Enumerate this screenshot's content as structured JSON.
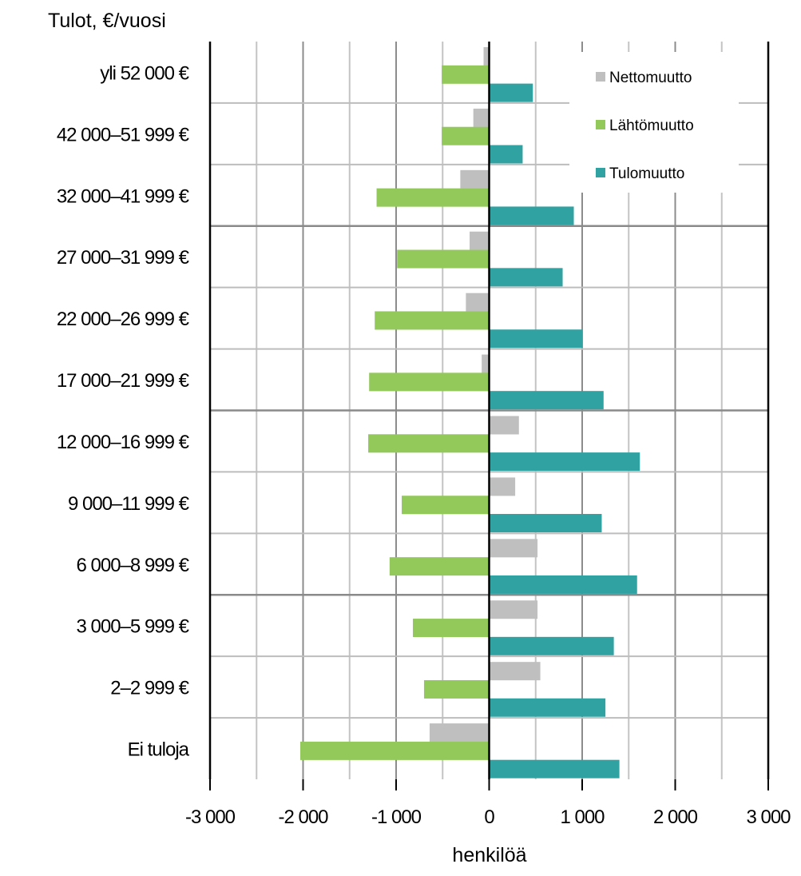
{
  "chart_data": {
    "type": "bar",
    "orientation": "horizontal",
    "y_axis_title": "Tulot, €/vuosi",
    "xlabel": "henkilöä",
    "categories": [
      "yli 52 000 €",
      "42 000–51 999 €",
      "32 000–41 999 €",
      "27 000–31 999 €",
      "22 000–26 999 €",
      "17 000–21 999 €",
      "12 000–16 999 €",
      "9 000–11 999 €",
      "6 000–8 999 €",
      "3 000–5 999 €",
      "2–2 999 €",
      "Ei tuloja"
    ],
    "series": [
      {
        "name": "Nettomuutto",
        "color": "#bfbfbf",
        "values": [
          -60,
          -170,
          -310,
          -210,
          -250,
          -80,
          320,
          280,
          520,
          520,
          550,
          -640
        ]
      },
      {
        "name": "Lähtömuutto",
        "color": "#92c95a",
        "values": [
          -510,
          -510,
          -1210,
          -990,
          -1230,
          -1290,
          -1300,
          -940,
          -1070,
          -820,
          -700,
          -2030
        ]
      },
      {
        "name": "Tulomuutto",
        "color": "#31a2a2",
        "values": [
          470,
          360,
          910,
          790,
          1000,
          1230,
          1620,
          1210,
          1590,
          1340,
          1250,
          1400
        ]
      }
    ],
    "xlim": [
      -3000,
      3000
    ],
    "xticks": [
      -3000,
      -2000,
      -1000,
      0,
      1000,
      2000,
      3000
    ],
    "xtick_labels": [
      "-3 000",
      "-2 000",
      "-1 000",
      "0",
      "1 000",
      "2 000",
      "3 000"
    ],
    "grid": true,
    "legend_position": "top-right"
  }
}
